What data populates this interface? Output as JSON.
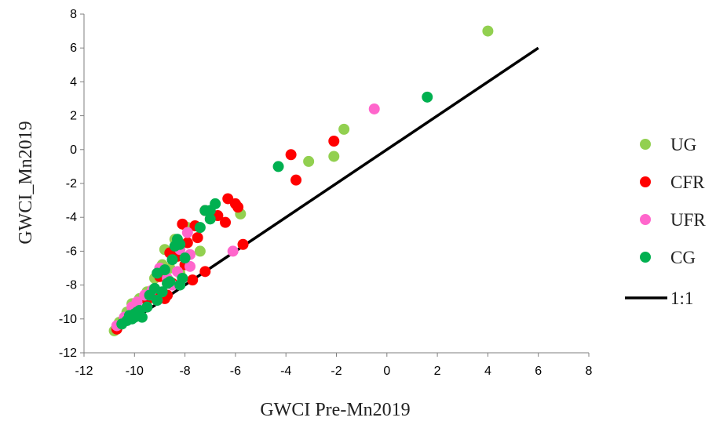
{
  "chart_data": {
    "type": "scatter",
    "xlabel": "GWCI  Pre-Mn2019",
    "ylabel": "GWCI_Mn2019",
    "xlim": [
      -12,
      8
    ],
    "ylim": [
      -12,
      8
    ],
    "xticks": [
      -12,
      -10,
      -8,
      -6,
      -4,
      -2,
      0,
      2,
      4,
      6,
      8
    ],
    "yticks": [
      -12,
      -10,
      -8,
      -6,
      -4,
      -2,
      0,
      2,
      4,
      6,
      8
    ],
    "grid": false,
    "legend_position": "right",
    "series": [
      {
        "name": "UG",
        "color": "#92D050",
        "points": [
          [
            4.0,
            7.0
          ],
          [
            -1.7,
            1.2
          ],
          [
            -3.1,
            -0.7
          ],
          [
            -2.1,
            -0.4
          ],
          [
            -5.8,
            -3.8
          ],
          [
            -7.4,
            -6.0
          ],
          [
            -8.8,
            -5.9
          ],
          [
            -8.4,
            -5.3
          ],
          [
            -8.9,
            -6.8
          ],
          [
            -8.2,
            -7.3
          ],
          [
            -9.2,
            -7.6
          ],
          [
            -9.5,
            -8.4
          ],
          [
            -9.8,
            -8.8
          ],
          [
            -10.1,
            -9.1
          ],
          [
            -10.3,
            -9.6
          ],
          [
            -10.6,
            -10.2
          ],
          [
            -10.8,
            -10.7
          ],
          [
            -7.9,
            -4.6
          ],
          [
            -8.6,
            -7.0
          ],
          [
            -9.9,
            -9.5
          ]
        ]
      },
      {
        "name": "CFR",
        "color": "#FF0000",
        "points": [
          [
            -3.8,
            -0.3
          ],
          [
            -2.1,
            0.5
          ],
          [
            -3.6,
            -1.8
          ],
          [
            -6.3,
            -2.9
          ],
          [
            -6.0,
            -3.2
          ],
          [
            -5.9,
            -3.4
          ],
          [
            -6.4,
            -4.3
          ],
          [
            -6.7,
            -3.9
          ],
          [
            -7.2,
            -3.6
          ],
          [
            -7.6,
            -4.5
          ],
          [
            -7.5,
            -5.2
          ],
          [
            -7.9,
            -5.5
          ],
          [
            -8.1,
            -4.4
          ],
          [
            -8.6,
            -6.1
          ],
          [
            -8.3,
            -6.3
          ],
          [
            -8.0,
            -6.8
          ],
          [
            -7.2,
            -7.2
          ],
          [
            -7.7,
            -7.7
          ],
          [
            -5.7,
            -5.6
          ],
          [
            -8.7,
            -8.6
          ],
          [
            -9.0,
            -7.5
          ],
          [
            -9.2,
            -8.3
          ],
          [
            -9.5,
            -8.9
          ],
          [
            -10.0,
            -9.5
          ],
          [
            -10.4,
            -10.0
          ],
          [
            -10.7,
            -10.6
          ],
          [
            -8.5,
            -7.9
          ],
          [
            -8.8,
            -8.8
          ]
        ]
      },
      {
        "name": "UFR",
        "color": "#FF66CC",
        "points": [
          [
            -0.5,
            2.4
          ],
          [
            -6.1,
            -6.0
          ],
          [
            -7.9,
            -4.9
          ],
          [
            -7.8,
            -6.2
          ],
          [
            -8.2,
            -5.9
          ],
          [
            -7.8,
            -6.9
          ],
          [
            -8.3,
            -7.2
          ],
          [
            -8.7,
            -7.6
          ],
          [
            -9.0,
            -7.0
          ],
          [
            -9.3,
            -8.3
          ],
          [
            -9.6,
            -8.6
          ],
          [
            -9.9,
            -9.0
          ],
          [
            -10.1,
            -9.3
          ],
          [
            -10.4,
            -9.9
          ],
          [
            -10.7,
            -10.4
          ],
          [
            -8.5,
            -8.0
          ],
          [
            -9.1,
            -8.9
          ]
        ]
      },
      {
        "name": "CG",
        "color": "#00B050",
        "points": [
          [
            1.6,
            3.1
          ],
          [
            -4.3,
            -1.0
          ],
          [
            -6.8,
            -3.2
          ],
          [
            -7.0,
            -3.6
          ],
          [
            -7.2,
            -3.6
          ],
          [
            -7.0,
            -4.1
          ],
          [
            -7.4,
            -4.6
          ],
          [
            -8.3,
            -5.3
          ],
          [
            -8.2,
            -5.6
          ],
          [
            -8.4,
            -5.7
          ],
          [
            -8.5,
            -6.5
          ],
          [
            -8.0,
            -6.4
          ],
          [
            -8.8,
            -7.1
          ],
          [
            -9.1,
            -7.3
          ],
          [
            -8.1,
            -7.6
          ],
          [
            -8.6,
            -7.8
          ],
          [
            -9.2,
            -8.2
          ],
          [
            -8.2,
            -8.0
          ],
          [
            -9.4,
            -8.6
          ],
          [
            -9.1,
            -8.9
          ],
          [
            -9.5,
            -9.3
          ],
          [
            -9.8,
            -9.5
          ],
          [
            -10.0,
            -9.7
          ],
          [
            -10.2,
            -9.8
          ],
          [
            -10.1,
            -10.0
          ],
          [
            -10.3,
            -10.1
          ],
          [
            -10.5,
            -10.3
          ],
          [
            -9.7,
            -9.9
          ],
          [
            -10.0,
            -9.9
          ],
          [
            -9.9,
            -9.6
          ],
          [
            -8.9,
            -8.4
          ],
          [
            -8.7,
            -7.9
          ]
        ]
      }
    ],
    "reference_line": {
      "name": "1:1",
      "color": "#000000",
      "x": [
        -10.5,
        6
      ],
      "y": [
        -10.5,
        6
      ]
    }
  }
}
